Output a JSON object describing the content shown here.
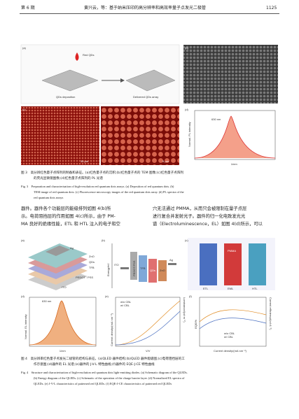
{
  "header": {
    "issue": "第 6 期",
    "running_title": "黄兴云，等：基于纳米压印的高分辨率和高效率量子点发光二极管",
    "page": "1125"
  },
  "figure3": {
    "panel_labels": [
      "(a)",
      "(b)",
      "(c)",
      "(d)"
    ],
    "labels": {
      "red_qds": "Red QDs",
      "deposition": "QDs deposition",
      "array": "Delivered QDs array",
      "peak": "630 nm",
      "ylabel": "Normal. PL intensity",
      "xlabel": "λ/nm",
      "scale_c1": "30 μm",
      "scale_c2": "5 μm"
    },
    "caption_cn": [
      "图 3　高分辨红色量子点阵列的制备和表征。(a)红色量子点的沉积;(b)红色量子点的 TEM 图像;(c)红色量子点阵列",
      "的荧光显微镜图像;(d)红色量子点阵列的 PL 光谱"
    ],
    "caption_en": [
      "Fig. 3　Preparation and characterisation of high-resolution red quantum dots arrays. (a) Deposition of red quantum dots. (b)",
      "TEM image of red quantum dots. (c) Fluorescence microscopy images of the red quantum dots array. (d) PL spectra of the",
      "red quantum dots arrays"
    ]
  },
  "body": {
    "left": [
      "器件。器件各个功能层的能级排列如图 4(b)所",
      "示。电荷阻挡层的作用如图 4(c)所示，由于 PM-",
      "MA 良好的绝缘性能，ETL 和 HTL 注入的电子和空"
    ],
    "right": [
      "穴无法通过 PMMA，从而只会被限制在量子点层",
      "进行复合并发射光子。器件的归一化电致发光光",
      "谱（Electroluminescence，EL）如图 4(d)所示，可以"
    ]
  },
  "figure4": {
    "panel_labels": [
      "(a)",
      "(b)",
      "(c)",
      "(d)",
      "(e)",
      "(f)"
    ],
    "stack": [
      "Ag",
      "ZnO",
      "QDs",
      "TFB",
      "PEDOT : PSS",
      "ITO"
    ],
    "energy": {
      "ylabel": "Energy/eV",
      "layers": [
        "ITO",
        "PEDOT:PSS",
        "TFB",
        "QDs",
        "ZnO",
        "Ag"
      ]
    },
    "barrier": {
      "pmma": "PMMA",
      "etl": "ETL",
      "eml": "EML",
      "htl": "HTL"
    },
    "el": {
      "peak": "630 nm",
      "ylabel": "Normal. EL intensity",
      "xlabel": "λ/nm"
    },
    "jvl": {
      "ylabel": "Current density/(mA·cm⁻²)",
      "y2label": "Luminance/(cd·m⁻²)",
      "xlabel": "V/V",
      "legend": [
        "w/o CBL",
        "w/ CBL"
      ]
    },
    "eqe": {
      "ylabel": "EQE/%",
      "y2label": "Current efficiency/(cd·A⁻¹)",
      "xlabel": "Current density/(mA·cm⁻²)",
      "legend": [
        "w/o CBL",
        "w/ CBL"
      ]
    },
    "caption_cn": [
      "图 4　高分辨率红色量子点发光二极管的结构与表征。(a)QLED 器件结构;(b)QLED 器件能级图;(c)电荷阻挡层的工",
      "作示意图;(d)器件的 EL 光谱;(e)器件的 J-V-L 特性曲线;(f)器件的 EQE-J-CE 特性曲线"
    ],
    "caption_en": [
      "Fig. 4　Structure and characterisation of high-resolution red quantum dots light-emitting diodes. (a) Schematic diagram of the QLEDs.",
      "(b) Energy diagram of the QLEDs. (c) Schematic of the operation of the charge barrier layer. (d) Normalized EL spectra of",
      "QLEDs. (e) J-V-L characteristics of patterned red QLEDs. (f) EQE-J-CE characteristics of patterned red QLEDs"
    ]
  }
}
